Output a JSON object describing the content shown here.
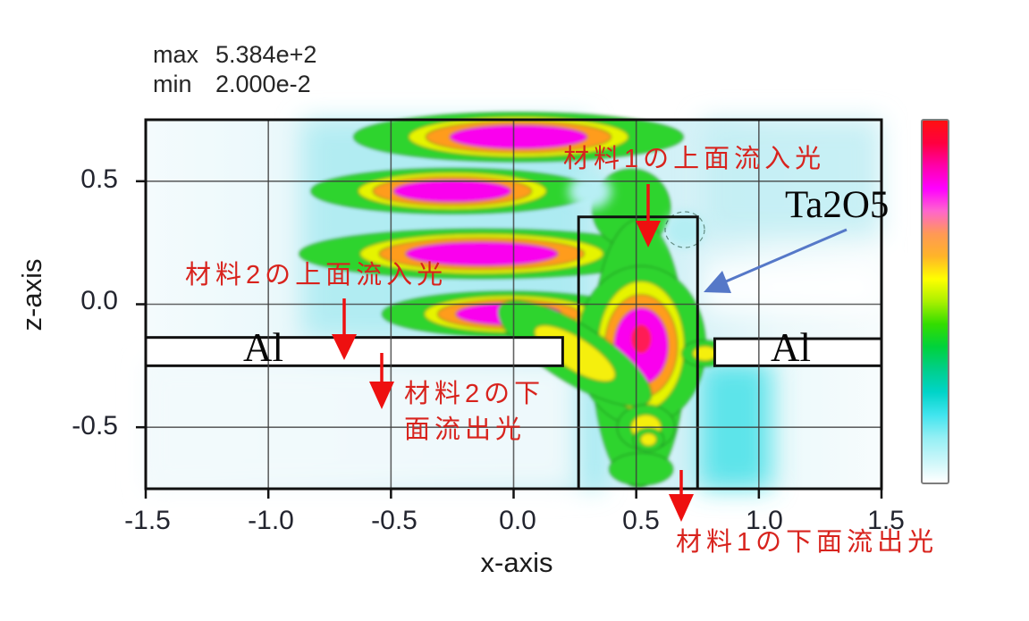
{
  "stats": {
    "max_label": "max",
    "max_value": "5.384e+2",
    "min_label": "min",
    "min_value": "2.000e-2"
  },
  "axes": {
    "x_label": "x-axis",
    "z_label": "z-axis",
    "x_tick_labels": [
      "-1.5",
      "-1.0",
      "-0.5",
      "0.0",
      "0.5",
      "1.0",
      "1.5"
    ],
    "z_tick_labels": [
      "0.5",
      "0.0",
      "-0.5"
    ]
  },
  "annotations": {
    "mat1_top_in": "材料1の上面流入光",
    "mat2_top_in": "材料2の上面流入光",
    "mat2_bottom_out_l1": "材料2の下",
    "mat2_bottom_out_l2": "面流出光",
    "mat1_bottom_out": "材料1の下面流出光",
    "ta2o5": "Ta2O5",
    "al_left": "Al",
    "al_right": "Al"
  },
  "colors": {
    "annotation_red": "#d8231d",
    "arrow_red": "#ee1010",
    "arrow_blue": "#5578c8",
    "structure_outline": "#101010",
    "grid": "#3c3c3c"
  },
  "chart_data": {
    "type": "heatmap",
    "title": "",
    "xlabel": "x-axis",
    "ylabel": "z-axis",
    "xlim": [
      -1.5,
      1.5
    ],
    "zlim": [
      -0.75,
      0.75
    ],
    "x_ticks": [
      -1.5,
      -1.0,
      -0.5,
      0.0,
      0.5,
      1.0,
      1.5
    ],
    "z_ticks": [
      0.5,
      0.0,
      -0.5
    ],
    "grid": true,
    "value_max": "5.384e+2",
    "value_min": "2.000e-2",
    "legend_position": "right-colorbar",
    "colorbar_top_to_bottom": [
      "#ff1111",
      "#ff0040",
      "#ff00aa",
      "#ff00ff",
      "#ff66cc",
      "#ff9955",
      "#ffb428",
      "#ffff00",
      "#aaf000",
      "#33dd00",
      "#00d23c",
      "#00cf8a",
      "#00d4c8",
      "#40e4ee",
      "#93eff4",
      "#c9f6f9",
      "#ffffff"
    ],
    "structures": [
      {
        "name": "Al slab left",
        "material": "Al",
        "x": [
          -1.5,
          0.2
        ],
        "z": [
          -0.25,
          -0.135
        ]
      },
      {
        "name": "Al slab right",
        "material": "Al",
        "x": [
          0.82,
          1.5
        ],
        "z": [
          -0.25,
          -0.14
        ]
      },
      {
        "name": "Ta2O5 pillar",
        "material": "Ta2O5",
        "x": [
          0.265,
          0.75
        ],
        "z": [
          -0.75,
          0.355
        ]
      }
    ],
    "hotspots": [
      {
        "x": 0.02,
        "z": 0.68,
        "rx": 0.28,
        "rz": 0.048,
        "peak": "magenta",
        "angle": 0
      },
      {
        "x": -0.25,
        "z": 0.46,
        "rx": 0.24,
        "rz": 0.044,
        "peak": "magenta",
        "angle": 0
      },
      {
        "x": -0.13,
        "z": 0.205,
        "rx": 0.31,
        "rz": 0.048,
        "peak": "magenta",
        "angle": 0
      },
      {
        "x": -0.02,
        "z": -0.04,
        "rx": 0.215,
        "rz": 0.044,
        "peak": "magenta",
        "angle": 0
      },
      {
        "x": 0.48,
        "z": 0.39,
        "rx": 0.16,
        "rz": 0.16,
        "peak": "green",
        "angle": 0
      },
      {
        "x": 0.51,
        "z": -0.2,
        "rx": 0.19,
        "rz": 0.545,
        "peak": "green",
        "angle": 0
      },
      {
        "x": 0.52,
        "z": -0.17,
        "rx": 0.11,
        "rz": 0.155,
        "peak": "magenta",
        "core": "red",
        "angle": 0
      },
      {
        "x": 0.25,
        "z": -0.2,
        "rx": 0.19,
        "rz": 0.065,
        "peak": "yellow",
        "angle": 32
      },
      {
        "x": 0.54,
        "z": -0.5,
        "rx": 0.062,
        "rz": 0.051,
        "peak": "yellow",
        "angle": 0
      },
      {
        "x": 0.55,
        "z": -0.55,
        "rx": 0.033,
        "rz": 0.026,
        "peak": "yellow",
        "angle": 0
      },
      {
        "x": 0.78,
        "z": -0.2,
        "rx": 0.05,
        "rz": 0.03,
        "peak": "yellow",
        "angle": 0
      },
      {
        "x": 0.52,
        "z": -0.67,
        "rx": 0.13,
        "rz": 0.066,
        "peak": "green",
        "angle": 0
      }
    ]
  }
}
